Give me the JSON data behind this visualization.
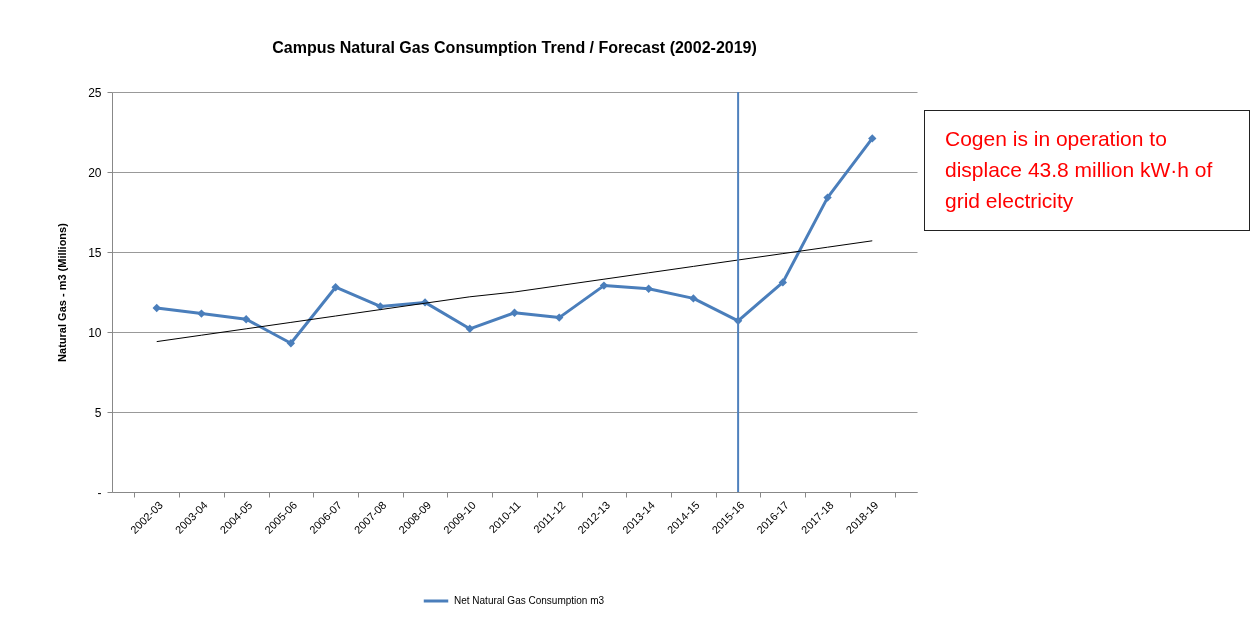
{
  "chart_data": {
    "type": "line",
    "title": "Campus Natural Gas Consumption Trend / Forecast (2002-2019)",
    "ylabel": "Natural Gas - m3 (Millions)",
    "categories": [
      "2002-03",
      "2003-04",
      "2004-05",
      "2005-06",
      "2006-07",
      "2007-08",
      "2008-09",
      "2009-10",
      "2010-11",
      "2011-12",
      "2012-13",
      "2013-14",
      "2014-15",
      "2015-16",
      "2016-17",
      "2017-18",
      "2018-19"
    ],
    "series": [
      {
        "name": "Net Natural Gas Consumption m3",
        "color": "#4a7ebb",
        "marker": "diamond",
        "values": [
          11.5,
          11.15,
          10.8,
          9.3,
          12.8,
          11.6,
          11.85,
          10.2,
          11.2,
          10.9,
          12.9,
          12.7,
          12.1,
          10.7,
          13.1,
          18.4,
          22.1
        ]
      },
      {
        "type": "line",
        "color": "#000000",
        "marker": "none",
        "values": [
          9.4,
          9.8,
          10.2,
          10.6,
          11.0,
          11.4,
          11.8,
          12.2,
          12.5,
          12.9,
          13.3,
          13.7,
          14.1,
          14.5,
          14.9,
          15.3,
          15.7
        ]
      }
    ],
    "ylim": [
      0,
      25
    ],
    "yticks": [
      {
        "value": 0,
        "label": "-"
      },
      5,
      10,
      15,
      20,
      25
    ],
    "grid": "y",
    "legend": "bottom",
    "ref_lines": [
      {
        "axis": "x",
        "value": "2015-16",
        "color": "#4f81bd"
      }
    ],
    "annotations": [
      "Cogen is in operation to displace 43.8 million kW·h of grid electricity"
    ]
  }
}
